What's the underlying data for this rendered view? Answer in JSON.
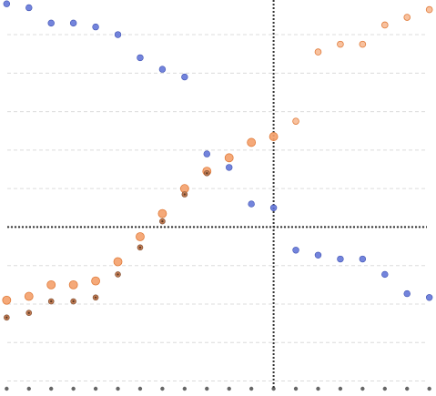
{
  "chart_data": {
    "type": "scatter",
    "title": "",
    "xlabel": "",
    "ylabel": "",
    "x": [
      0,
      1,
      2,
      3,
      4,
      5,
      6,
      7,
      8,
      9,
      10,
      11,
      12,
      13,
      14,
      15,
      16,
      17,
      18,
      19
    ],
    "xlim": [
      -0.3,
      19.3
    ],
    "ylim": [
      -4.2,
      5.9
    ],
    "grid": "horizontal-dashed",
    "reference_lines": {
      "x": 12,
      "y": 0
    },
    "series": [
      {
        "color": "#5a6fd6",
        "marker": "circle",
        "points": [
          {
            "x": 0,
            "y": 5.8
          },
          {
            "x": 1,
            "y": 5.7
          },
          {
            "x": 2,
            "y": 5.3
          },
          {
            "x": 3,
            "y": 5.3
          },
          {
            "x": 4,
            "y": 5.2
          },
          {
            "x": 5,
            "y": 5.0
          },
          {
            "x": 6,
            "y": 4.4
          },
          {
            "x": 7,
            "y": 4.1
          },
          {
            "x": 8,
            "y": 3.9
          },
          {
            "x": 9,
            "y": 1.9
          },
          {
            "x": 10,
            "y": 1.55
          },
          {
            "x": 11,
            "y": 0.6
          },
          {
            "x": 12,
            "y": 0.5
          },
          {
            "x": 13,
            "y": -0.6
          },
          {
            "x": 14,
            "y": -0.73
          },
          {
            "x": 15,
            "y": -0.83
          },
          {
            "x": 16,
            "y": -0.83
          },
          {
            "x": 17,
            "y": -1.23
          },
          {
            "x": 18,
            "y": -1.73
          },
          {
            "x": 19,
            "y": -1.83
          }
        ]
      },
      {
        "color": "#f4a06a",
        "marker": "circle-large",
        "points": [
          {
            "x": 0,
            "y": -1.9
          },
          {
            "x": 1,
            "y": -1.8
          },
          {
            "x": 2,
            "y": -1.5
          },
          {
            "x": 3,
            "y": -1.5
          },
          {
            "x": 4,
            "y": -1.4
          },
          {
            "x": 5,
            "y": -0.9
          },
          {
            "x": 6,
            "y": -0.25
          },
          {
            "x": 7,
            "y": 0.35
          },
          {
            "x": 8,
            "y": 1.0
          },
          {
            "x": 9,
            "y": 1.45
          },
          {
            "x": 10,
            "y": 1.8
          },
          {
            "x": 11,
            "y": 2.2
          },
          {
            "x": 12,
            "y": 2.35
          },
          {
            "x": 13,
            "y": 2.75
          },
          {
            "x": 14,
            "y": 4.55
          },
          {
            "x": 15,
            "y": 4.75
          },
          {
            "x": 16,
            "y": 4.75
          },
          {
            "x": 17,
            "y": 5.25
          },
          {
            "x": 18,
            "y": 5.45
          },
          {
            "x": 19,
            "y": 5.65
          }
        ]
      },
      {
        "color": "#c07a52",
        "marker": "circle-small-dark",
        "points": [
          {
            "x": 0,
            "y": -2.35
          },
          {
            "x": 1,
            "y": -2.23
          },
          {
            "x": 2,
            "y": -1.93
          },
          {
            "x": 3,
            "y": -1.93
          },
          {
            "x": 4,
            "y": -1.83
          },
          {
            "x": 5,
            "y": -1.23
          },
          {
            "x": 6,
            "y": -0.53
          },
          {
            "x": 7,
            "y": 0.15
          },
          {
            "x": 8,
            "y": 0.85
          },
          {
            "x": 9,
            "y": 1.4
          }
        ]
      }
    ]
  }
}
